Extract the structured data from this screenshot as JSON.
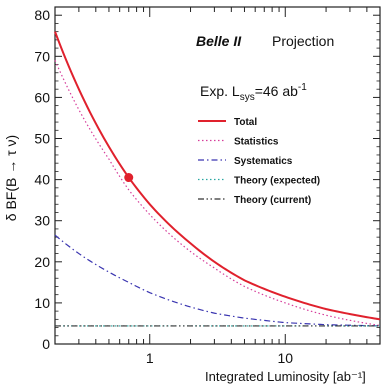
{
  "chart_data": {
    "type": "line",
    "xscale": "log",
    "xlim": [
      0.2,
      50
    ],
    "ylim": [
      0,
      82
    ],
    "yticks": [
      0,
      10,
      20,
      30,
      40,
      50,
      60,
      70,
      80
    ],
    "xtick_labels": [
      {
        "value": 1,
        "label": "1"
      },
      {
        "value": 10,
        "label": "10"
      }
    ],
    "xlabel": "Integrated Luminosity [ab⁻¹]",
    "ylabel": "δ BF(B → τ ν)",
    "annotations": {
      "experiment": "Belle II",
      "projection": "Projection",
      "exp_prefix": "Exp. L",
      "exp_sub": "sys",
      "exp_value": "=46 ab",
      "exp_unit_sup": "-1"
    },
    "legend_position": "top-right",
    "series": [
      {
        "name": "Total",
        "color": "#e0212d",
        "style": "solid",
        "x": [
          0.2,
          0.3,
          0.5,
          0.7,
          1,
          2,
          3,
          5,
          10,
          20,
          50
        ],
        "y": [
          76,
          62,
          48,
          40.5,
          34,
          24.5,
          20,
          15.5,
          11.5,
          8.5,
          6
        ]
      },
      {
        "name": "Statistics",
        "color": "#d63c9a",
        "style": "dotted",
        "x": [
          0.2,
          0.3,
          0.5,
          0.7,
          1,
          2,
          3,
          5,
          10,
          20,
          50
        ],
        "y": [
          69,
          57,
          45,
          37.5,
          31.5,
          22.5,
          18.5,
          14,
          10,
          7,
          4.5
        ]
      },
      {
        "name": "Systematics",
        "color": "#3a35b0",
        "style": "dashdot",
        "x": [
          0.2,
          0.3,
          0.5,
          0.7,
          1,
          2,
          3,
          5,
          10,
          20,
          50
        ],
        "y": [
          26.5,
          22,
          17.5,
          15,
          12.5,
          9,
          7.5,
          6.3,
          5.2,
          4.7,
          4.4
        ]
      },
      {
        "name": "Theory (expected)",
        "color": "#29a7a2",
        "style": "dotted",
        "x": [
          0.2,
          50
        ],
        "y": [
          4.4,
          4.4
        ]
      },
      {
        "name": "Theory (current)",
        "color": "#333333",
        "style": "dashdotdot",
        "x": [
          0.2,
          50
        ],
        "y": [
          4.4,
          4.4
        ]
      }
    ],
    "marker": {
      "x": 0.7,
      "y": 40.5,
      "color": "#e0212d"
    }
  }
}
